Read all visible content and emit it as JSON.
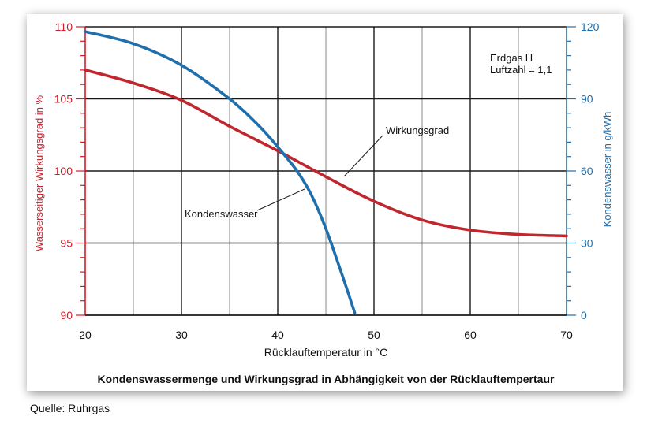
{
  "chart_data": {
    "type": "line",
    "title": "Kondenswassermenge und Wirkungsgrad in Abhängigkeit von der Rücklauftempertaur",
    "xlabel": "Rücklauftemperatur in °C",
    "ylabel_left": "Wasserseitiger Wirkungsgrad in %",
    "ylabel_right": "Kondenswasser in g/kWh",
    "xlim": [
      20,
      70
    ],
    "ylim_left": [
      90,
      110
    ],
    "ylim_right": [
      0,
      120
    ],
    "x_ticks": [
      "20",
      "30",
      "40",
      "50",
      "60",
      "70"
    ],
    "y_left_ticks": [
      "90",
      "95",
      "100",
      "105",
      "110"
    ],
    "y_right_ticks": [
      "0",
      "30",
      "60",
      "90",
      "120"
    ],
    "grid": true,
    "annotation": {
      "line1": "Erdgas H",
      "line2": "Luftzahl = 1,1"
    },
    "series": [
      {
        "name": "Wirkungsgrad",
        "axis": "left",
        "color": "#c0262e",
        "x": [
          20,
          25,
          30,
          35,
          40,
          45,
          50,
          55,
          60,
          65,
          70
        ],
        "values": [
          107.0,
          106.1,
          104.9,
          103.1,
          101.4,
          99.6,
          97.9,
          96.6,
          95.9,
          95.6,
          95.5
        ]
      },
      {
        "name": "Kondenswasser",
        "axis": "right",
        "color": "#1f6fad",
        "x": [
          20,
          25,
          30,
          35,
          38,
          40,
          42,
          43.5,
          45,
          46.5,
          48
        ],
        "values": [
          118,
          113,
          104,
          90,
          79,
          70,
          60,
          50,
          36,
          19,
          1
        ]
      }
    ]
  },
  "source": "Quelle: Ruhrgas"
}
